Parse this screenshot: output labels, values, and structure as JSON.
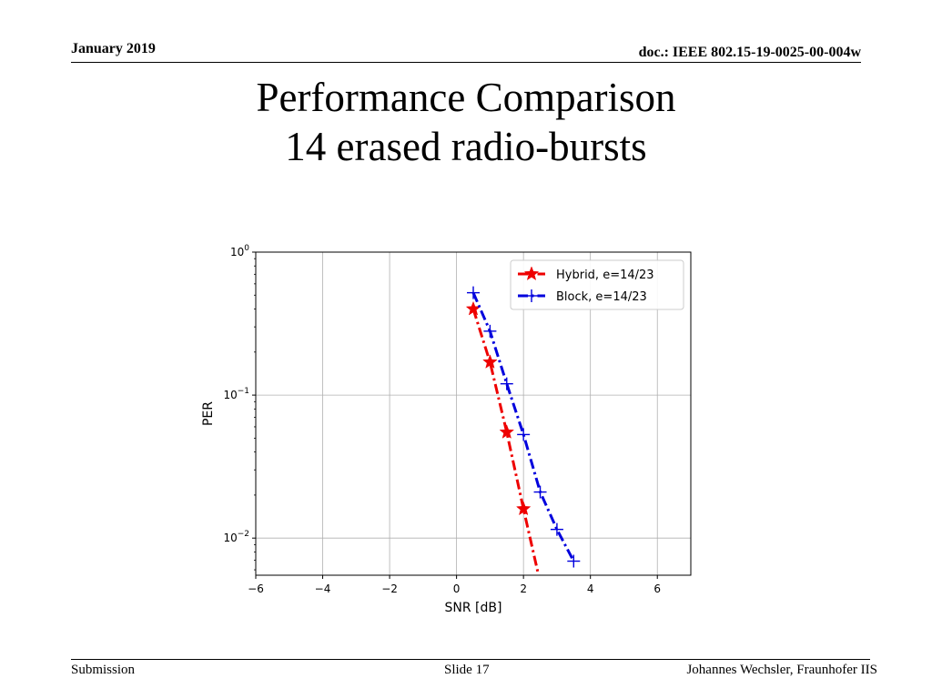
{
  "header": {
    "date": "January 2019",
    "doc": "doc.: IEEE 802.15-19-0025-00-004w"
  },
  "slide": {
    "title_line1": "Performance Comparison",
    "title_line2": "14 erased radio-bursts"
  },
  "footer": {
    "left": "Submission",
    "center": "Slide 17",
    "right": "Johannes Wechsler, Fraunhofer IIS"
  },
  "chart_data": {
    "type": "line",
    "xlabel": "SNR [dB]",
    "ylabel": "PER",
    "xlim": [
      -6,
      7
    ],
    "ylim": [
      0.0055,
      1
    ],
    "yscale": "log",
    "xticks": [
      -6,
      -4,
      -2,
      0,
      2,
      4,
      6
    ],
    "xtick_labels": [
      "−6",
      "−4",
      "−2",
      "0",
      "2",
      "4",
      "6"
    ],
    "yticks": [
      {
        "value": 1,
        "base": "10",
        "exp": "0"
      },
      {
        "value": 0.1,
        "base": "10",
        "exp": "−1"
      },
      {
        "value": 0.01,
        "base": "10",
        "exp": "−2"
      }
    ],
    "grid": true,
    "legend_position": "upper right",
    "series": [
      {
        "name": "Hybrid, e=14/23",
        "color": "#ee0000",
        "linestyle": "dashdot",
        "marker": "star",
        "x": [
          0.5,
          1.0,
          1.5,
          2.0
        ],
        "y": [
          0.4,
          0.17,
          0.055,
          0.016
        ],
        "tail_x": 2.45,
        "tail_y": 0.0055
      },
      {
        "name": "Block, e=14/23",
        "color": "#0000dd",
        "linestyle": "dashdot",
        "marker": "plus",
        "x": [
          0.5,
          1.0,
          1.5,
          2.0,
          2.5,
          3.0,
          3.5
        ],
        "y": [
          0.52,
          0.28,
          0.12,
          0.053,
          0.021,
          0.0115,
          0.0069
        ]
      }
    ]
  }
}
